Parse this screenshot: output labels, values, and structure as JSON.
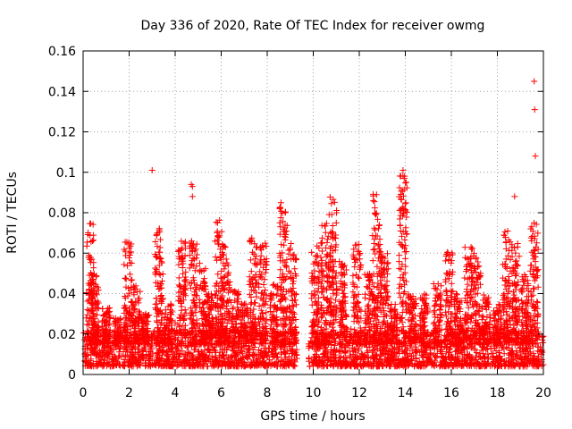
{
  "chart_data": {
    "type": "scatter",
    "title": "Day 336 of 2020, Rate Of TEC Index for receiver owmg",
    "xlabel": "GPS time / hours",
    "ylabel": "ROTI / TECUs",
    "xlim": [
      0,
      20
    ],
    "ylim": [
      0,
      0.16
    ],
    "xticks": [
      "0",
      "2",
      "4",
      "6",
      "8",
      "10",
      "12",
      "14",
      "16",
      "18",
      "20"
    ],
    "yticks": [
      "0",
      "0.02",
      "0.04",
      "0.06",
      "0.08",
      "0.1",
      "0.12",
      "0.14",
      "0.16"
    ],
    "grid": true,
    "marker": "+",
    "color": "#ff0000",
    "gap": [
      9.3,
      9.8
    ],
    "baseline": [
      0.004,
      0.022
    ],
    "bursts": [
      {
        "x": 0.3,
        "peak": 0.076
      },
      {
        "x": 0.5,
        "peak": 0.05
      },
      {
        "x": 1.0,
        "peak": 0.033
      },
      {
        "x": 1.5,
        "peak": 0.028
      },
      {
        "x": 1.95,
        "peak": 0.066
      },
      {
        "x": 2.3,
        "peak": 0.045
      },
      {
        "x": 2.7,
        "peak": 0.03
      },
      {
        "x": 3.3,
        "peak": 0.073
      },
      {
        "x": 3.7,
        "peak": 0.035
      },
      {
        "x": 4.3,
        "peak": 0.067
      },
      {
        "x": 4.8,
        "peak": 0.066
      },
      {
        "x": 5.2,
        "peak": 0.055
      },
      {
        "x": 5.5,
        "peak": 0.04
      },
      {
        "x": 5.9,
        "peak": 0.077
      },
      {
        "x": 6.2,
        "peak": 0.066
      },
      {
        "x": 6.6,
        "peak": 0.042
      },
      {
        "x": 7.0,
        "peak": 0.035
      },
      {
        "x": 7.4,
        "peak": 0.07
      },
      {
        "x": 7.8,
        "peak": 0.065
      },
      {
        "x": 8.3,
        "peak": 0.045
      },
      {
        "x": 8.7,
        "peak": 0.085
      },
      {
        "x": 9.1,
        "peak": 0.065
      },
      {
        "x": 10.1,
        "peak": 0.065
      },
      {
        "x": 10.5,
        "peak": 0.075
      },
      {
        "x": 10.85,
        "peak": 0.089
      },
      {
        "x": 11.3,
        "peak": 0.056
      },
      {
        "x": 11.9,
        "peak": 0.065
      },
      {
        "x": 12.4,
        "peak": 0.05
      },
      {
        "x": 12.75,
        "peak": 0.09
      },
      {
        "x": 13.1,
        "peak": 0.06
      },
      {
        "x": 13.5,
        "peak": 0.035
      },
      {
        "x": 13.9,
        "peak": 0.099
      },
      {
        "x": 14.3,
        "peak": 0.04
      },
      {
        "x": 14.8,
        "peak": 0.04
      },
      {
        "x": 15.4,
        "peak": 0.045
      },
      {
        "x": 15.9,
        "peak": 0.062
      },
      {
        "x": 16.3,
        "peak": 0.04
      },
      {
        "x": 16.75,
        "peak": 0.063
      },
      {
        "x": 17.1,
        "peak": 0.06
      },
      {
        "x": 17.5,
        "peak": 0.04
      },
      {
        "x": 18.0,
        "peak": 0.035
      },
      {
        "x": 18.4,
        "peak": 0.072
      },
      {
        "x": 18.8,
        "peak": 0.065
      },
      {
        "x": 19.2,
        "peak": 0.05
      },
      {
        "x": 19.6,
        "peak": 0.075
      }
    ],
    "outliers": [
      {
        "x": 3.0,
        "y": 0.101
      },
      {
        "x": 4.7,
        "y": 0.094
      },
      {
        "x": 4.75,
        "y": 0.093
      },
      {
        "x": 4.75,
        "y": 0.088
      },
      {
        "x": 8.6,
        "y": 0.085
      },
      {
        "x": 13.9,
        "y": 0.101
      },
      {
        "x": 13.95,
        "y": 0.097
      },
      {
        "x": 18.75,
        "y": 0.088
      },
      {
        "x": 19.6,
        "y": 0.145
      },
      {
        "x": 19.62,
        "y": 0.131
      },
      {
        "x": 19.65,
        "y": 0.108
      }
    ]
  }
}
